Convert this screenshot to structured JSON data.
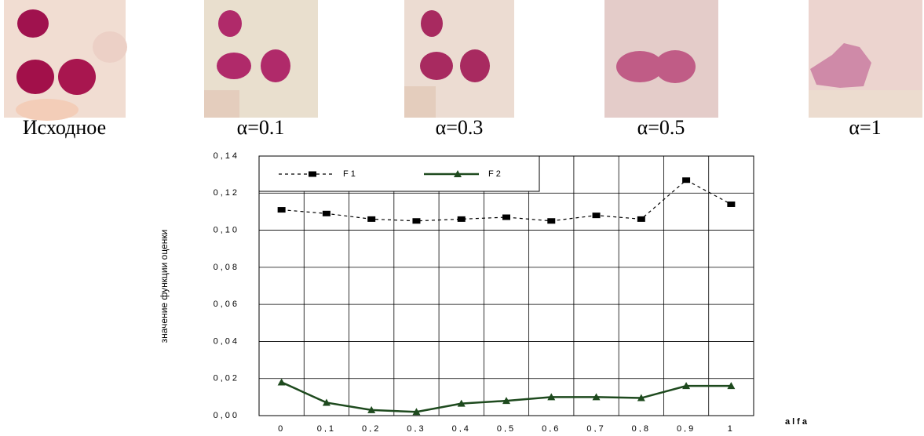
{
  "panels": [
    {
      "caption": "Исходное"
    },
    {
      "caption": "α=0.1"
    },
    {
      "caption": "α=0.3"
    },
    {
      "caption": "α=0.5"
    },
    {
      "caption": "α=1"
    }
  ],
  "chart_data": {
    "type": "line",
    "y_label": "значение функции оценки",
    "x_label": "alfa",
    "categories": [
      "0",
      "0,1",
      "0,2",
      "0,3",
      "0,4",
      "0,5",
      "0,6",
      "0,7",
      "0,8",
      "0,9",
      "1"
    ],
    "series": [
      {
        "name": "F1",
        "color": "#000000",
        "marker": "square",
        "dash": true,
        "values": [
          0.111,
          0.109,
          0.106,
          0.105,
          0.106,
          0.107,
          0.105,
          0.108,
          0.106,
          0.127,
          0.114
        ]
      },
      {
        "name": "F2",
        "color": "#1e4a1e",
        "marker": "triangle",
        "dash": false,
        "values": [
          0.018,
          0.007,
          0.003,
          0.002,
          0.0065,
          0.008,
          0.01,
          0.01,
          0.0095,
          0.016,
          0.016
        ]
      }
    ],
    "ylim": [
      0,
      0.14
    ],
    "yticks": [
      {
        "value": 0,
        "label": "0,00"
      },
      {
        "value": 0.02,
        "label": "0,02"
      },
      {
        "value": 0.04,
        "label": "0,04"
      },
      {
        "value": 0.06,
        "label": "0,06"
      },
      {
        "value": 0.08,
        "label": "0,08"
      },
      {
        "value": 0.1,
        "label": "0,10"
      },
      {
        "value": 0.12,
        "label": "0,12"
      },
      {
        "value": 0.14,
        "label": "0,14"
      }
    ],
    "grid": true
  }
}
